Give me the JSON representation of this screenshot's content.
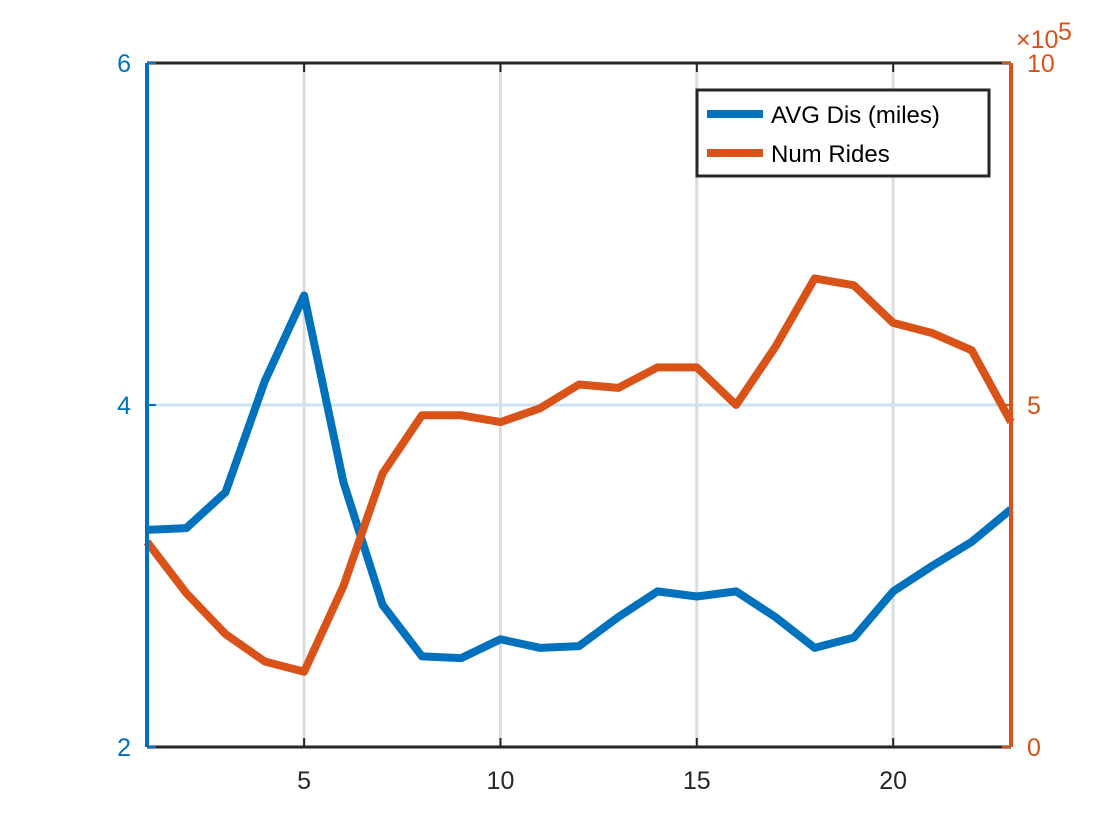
{
  "chart_data": {
    "type": "line",
    "title": "",
    "xlabel": "",
    "x": [
      1,
      2,
      3,
      4,
      5,
      6,
      7,
      8,
      9,
      10,
      11,
      12,
      13,
      14,
      15,
      16,
      17,
      18,
      19,
      20,
      21,
      22,
      23
    ],
    "xlim": [
      1,
      23
    ],
    "x_ticks": [
      5,
      10,
      15,
      20
    ],
    "y_left": {
      "label": "",
      "lim": [
        2,
        6
      ],
      "ticks": [
        2,
        4,
        6
      ],
      "color": "#0072BD"
    },
    "y_right": {
      "label": "",
      "lim": [
        0,
        1000000
      ],
      "ticks": [
        0,
        500000,
        1000000
      ],
      "tick_labels": [
        "0",
        "5",
        "10"
      ],
      "exponent_label": "×10",
      "exponent_power": "5",
      "color": "#D95319"
    },
    "grid": "x",
    "legend_position": "top-right",
    "series": [
      {
        "name": "AVG Dis (miles)",
        "axis": "left",
        "color": "#0072BD",
        "values": [
          3.27,
          3.28,
          3.49,
          4.14,
          4.64,
          3.55,
          2.83,
          2.53,
          2.52,
          2.63,
          2.58,
          2.59,
          2.76,
          2.91,
          2.88,
          2.91,
          2.76,
          2.58,
          2.64,
          2.91,
          3.06,
          3.2,
          3.39
        ]
      },
      {
        "name": "Num Rides",
        "axis": "right",
        "color": "#D95319",
        "values": [
          300000,
          225000,
          165000,
          125000,
          110000,
          235000,
          400000,
          485000,
          485000,
          475000,
          495000,
          530000,
          525000,
          555000,
          555000,
          500000,
          585000,
          685000,
          675000,
          620000,
          605000,
          580000,
          475000
        ]
      }
    ]
  }
}
